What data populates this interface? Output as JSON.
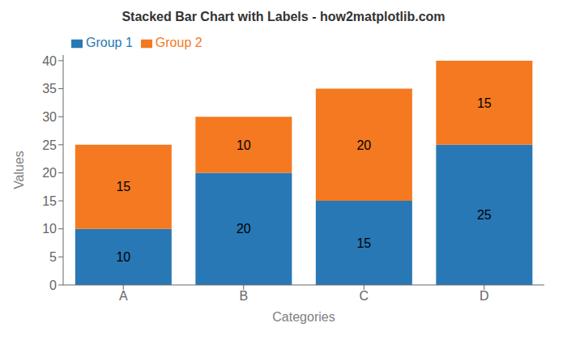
{
  "chart_data": {
    "type": "bar",
    "title": "Stacked Bar Chart with Labels - how2matplotlib.com",
    "xlabel": "Categories",
    "ylabel": "Values",
    "categories": [
      "A",
      "B",
      "C",
      "D"
    ],
    "series": [
      {
        "name": "Group 1",
        "color": "#2878b5",
        "values": [
          10,
          20,
          15,
          25
        ]
      },
      {
        "name": "Group 2",
        "color": "#f47920",
        "values": [
          15,
          10,
          20,
          15
        ]
      }
    ],
    "stacked": true,
    "data_labels": true,
    "ylim": [
      0,
      41
    ],
    "yticks": [
      0,
      5,
      10,
      15,
      20,
      25,
      30,
      35,
      40
    ],
    "grid": false,
    "legend": "upper left"
  }
}
